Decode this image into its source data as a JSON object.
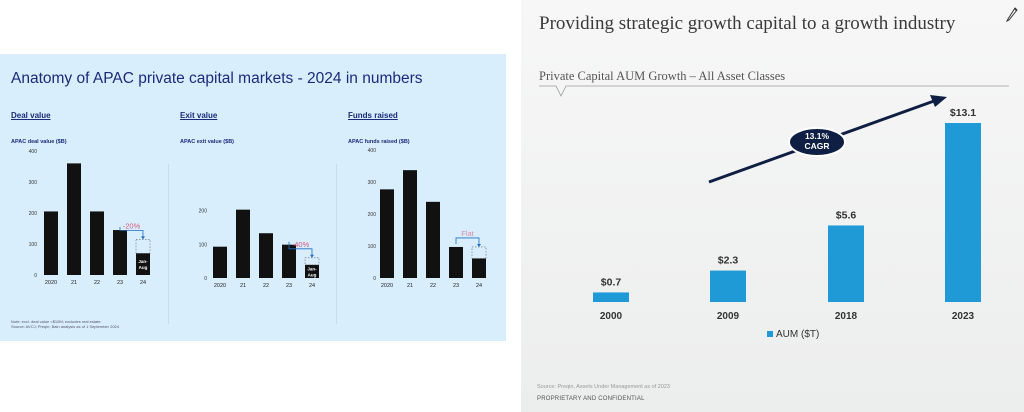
{
  "left": {
    "title": "Anatomy of APAC private capital markets - 2024 in numbers",
    "note_line1": "Note: excl. deal value <$10M; excludes real estate.",
    "note_line2": "Source: AVCJ; Preqin; Bain analysis as of 1 September 2024"
  },
  "right": {
    "title": "Providing strategic growth capital to a growth industry",
    "subtitle": "Private Capital AUM Growth – All Asset Classes",
    "cagr_line1": "13.1%",
    "cagr_line2": "CAGR",
    "legend": "AUM ($T)",
    "source": "Source: Preqin, Assets Under Management as of 2023",
    "footer": "PROPRIETARY AND CONFIDENTIAL",
    "pencil_icon": "pencil-icon"
  },
  "colors": {
    "dark_bar": "#111111",
    "aum_bar": "#1f9ad6",
    "callout_blue": "#1f6fc2",
    "change_pink": "#d45a7a",
    "flat_pink": "#d88aa8",
    "arrow_navy": "#0f1f44",
    "left_bg": "#d9eefc"
  },
  "chart_data": [
    {
      "type": "bar",
      "heading": "Deal value",
      "ylabel": "APAC deal value ($B)",
      "categories": [
        "2020",
        "21",
        "22",
        "23",
        "24"
      ],
      "values": [
        205,
        360,
        205,
        145,
        70
      ],
      "projected_value": 115,
      "partial_label": "Jan-\nAug",
      "change_label": "-20%",
      "ylim": [
        0,
        400
      ],
      "yticks": [
        0,
        100,
        200,
        300,
        400
      ]
    },
    {
      "type": "bar",
      "heading": "Exit value",
      "ylabel": "APAC exit value ($B)",
      "categories": [
        "2020",
        "21",
        "22",
        "23",
        "24"
      ],
      "values": [
        93,
        203,
        133,
        99,
        39
      ],
      "projected_value": 60,
      "partial_label": "Jan-\nAug",
      "change_label": "-40%",
      "ylim": [
        0,
        300
      ],
      "yticks": [
        0,
        100,
        200
      ]
    },
    {
      "type": "bar",
      "heading": "Funds raised",
      "ylabel": "APAC funds raised ($B)",
      "categories": [
        "2020",
        "21",
        "22",
        "23",
        "24"
      ],
      "values": [
        277,
        337,
        238,
        97,
        61
      ],
      "projected_value": 97,
      "partial_label": "",
      "change_label": "Flat",
      "ylim": [
        0,
        400
      ],
      "yticks": [
        0,
        100,
        200,
        300,
        400
      ]
    },
    {
      "type": "bar",
      "title": "Private Capital AUM Growth – All Asset Classes",
      "categories": [
        "2000",
        "2009",
        "2018",
        "2023"
      ],
      "values": [
        0.7,
        2.3,
        5.6,
        13.1
      ],
      "value_labels": [
        "$0.7",
        "$2.3",
        "$5.6",
        "$13.1"
      ],
      "series": [
        {
          "name": "AUM ($T)",
          "values": [
            0.7,
            2.3,
            5.6,
            13.1
          ]
        }
      ],
      "ylim": [
        0,
        14
      ],
      "annotation": "13.1% CAGR",
      "legend_position": "bottom"
    }
  ]
}
